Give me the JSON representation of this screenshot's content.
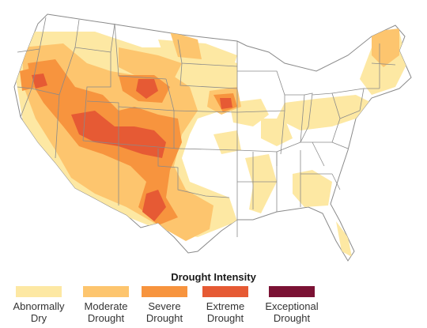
{
  "legend": {
    "title": "Drought Intensity",
    "items": [
      {
        "label_line1": "Abnormally",
        "label_line2": "Dry",
        "color": "#fde8a3"
      },
      {
        "label_line1": "Moderate",
        "label_line2": "Drought",
        "color": "#fdc56e"
      },
      {
        "label_line1": "Severe",
        "label_line2": "Drought",
        "color": "#f7943e"
      },
      {
        "label_line1": "Extreme",
        "label_line2": "Drought",
        "color": "#e65a34"
      },
      {
        "label_line1": "Exceptional",
        "label_line2": "Drought",
        "color": "#7b1234"
      }
    ]
  },
  "map": {
    "land_color": "#ffffff",
    "border_color": "#8a8a8a"
  }
}
